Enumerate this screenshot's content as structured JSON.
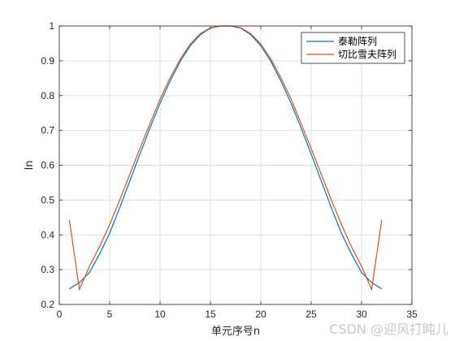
{
  "chart_data": {
    "type": "line",
    "xlabel": "单元序号n",
    "ylabel": "In",
    "xlim": [
      0,
      35
    ],
    "ylim": [
      0.2,
      1.0
    ],
    "xticks": [
      0,
      5,
      10,
      15,
      20,
      25,
      30,
      35
    ],
    "yticks": [
      0.2,
      0.3,
      0.4,
      0.5,
      0.6,
      0.7,
      0.8,
      0.9,
      1.0
    ],
    "grid": true,
    "legend_position": "top-right",
    "series": [
      {
        "name": "泰勒阵列",
        "color": "#0072BD",
        "x": [
          1,
          2,
          3,
          4,
          5,
          6,
          7,
          8,
          9,
          10,
          11,
          12,
          13,
          14,
          15,
          16,
          17,
          18,
          19,
          20,
          21,
          22,
          23,
          24,
          25,
          26,
          27,
          28,
          29,
          30,
          31,
          32
        ],
        "y": [
          0.245,
          0.263,
          0.292,
          0.345,
          0.405,
          0.478,
          0.555,
          0.632,
          0.707,
          0.778,
          0.842,
          0.898,
          0.943,
          0.975,
          0.994,
          1.0,
          1.0,
          0.994,
          0.975,
          0.943,
          0.898,
          0.842,
          0.778,
          0.707,
          0.632,
          0.555,
          0.478,
          0.405,
          0.345,
          0.292,
          0.263,
          0.245
        ]
      },
      {
        "name": "切比雪夫阵列",
        "color": "#D95319",
        "x": [
          1,
          2,
          3,
          4,
          5,
          6,
          7,
          8,
          9,
          10,
          11,
          12,
          13,
          14,
          15,
          16,
          17,
          18,
          19,
          20,
          21,
          22,
          23,
          24,
          25,
          26,
          27,
          28,
          29,
          30,
          31,
          32
        ],
        "y": [
          0.443,
          0.243,
          0.31,
          0.366,
          0.43,
          0.5,
          0.574,
          0.648,
          0.72,
          0.79,
          0.851,
          0.905,
          0.948,
          0.978,
          0.995,
          1.0,
          1.0,
          0.995,
          0.978,
          0.948,
          0.905,
          0.851,
          0.79,
          0.72,
          0.648,
          0.574,
          0.5,
          0.43,
          0.366,
          0.31,
          0.243,
          0.443
        ]
      }
    ]
  },
  "watermark": "CSDN @迎风打盹儿"
}
